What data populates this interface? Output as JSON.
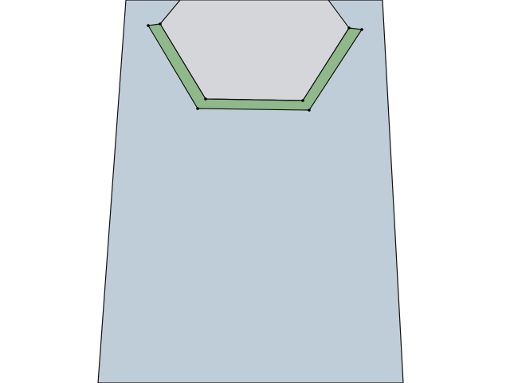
{
  "colors": {
    "background": "#ffffff",
    "panel_face": "#bfcdd8",
    "hole_face": "#d4d6da",
    "inner_wall": "#8fb98b",
    "edge": "#111111",
    "vertex": "#000000"
  },
  "shapes": {
    "panel": "tapered-plate",
    "cutout": "hexagonal-hole",
    "wall": "inner-bevel-face"
  }
}
